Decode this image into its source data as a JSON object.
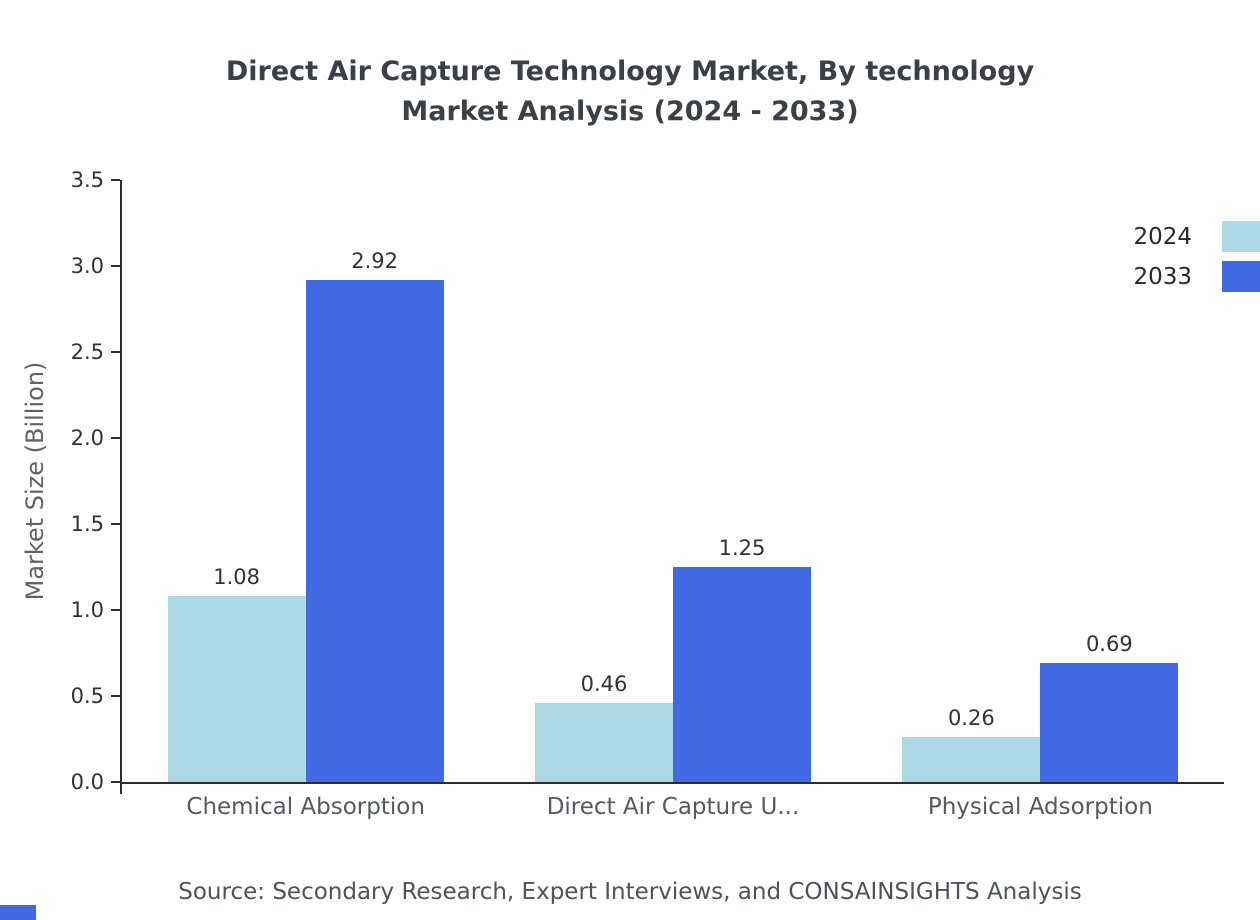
{
  "title": {
    "line1": "Direct Air Capture Technology Market, By technology",
    "line2": "Market Analysis (2024 - 2033)"
  },
  "source": "Source: Secondary Research, Expert Interviews, and CONSAINSIGHTS Analysis",
  "colors": {
    "series_2024": "#ADD8E6",
    "series_2033": "#4169E1",
    "axis": "#2c2c2c",
    "title_text": "#3b3f46",
    "label_text": "#555a60"
  },
  "chart_data": {
    "type": "bar",
    "title": "Direct Air Capture Technology Market, By technology Market Analysis (2024 - 2033)",
    "categories": [
      "Chemical Absorption",
      "Direct Air Capture U...",
      "Physical Adsorption"
    ],
    "series": [
      {
        "name": "2024",
        "color": "#ADD8E6",
        "values": [
          1.08,
          0.46,
          0.26
        ]
      },
      {
        "name": "2033",
        "color": "#4169E1",
        "values": [
          2.92,
          1.25,
          0.69
        ]
      }
    ],
    "xlabel": "",
    "ylabel": "Market Size (Billion)",
    "ylim": [
      0,
      3.5
    ],
    "yticks": [
      0.0,
      0.5,
      1.0,
      1.5,
      2.0,
      2.5,
      3.0,
      3.5
    ],
    "grid": false,
    "legend_position": "top-right",
    "value_label_decimals": 2
  }
}
